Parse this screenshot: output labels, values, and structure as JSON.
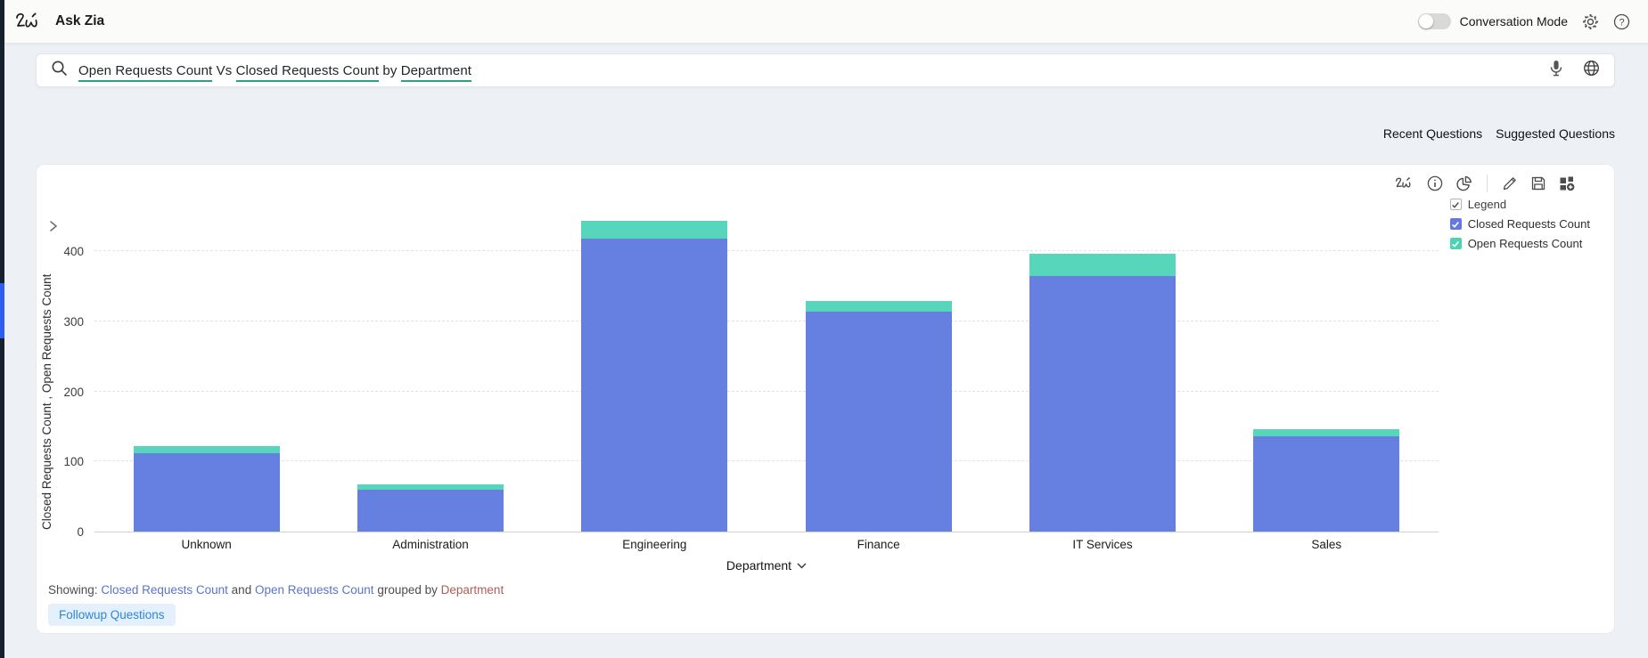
{
  "header": {
    "logo_text": "Zia",
    "title": "Ask Zia",
    "conversation_mode_label": "Conversation Mode",
    "conversation_mode_state": "off"
  },
  "search": {
    "query_parts": {
      "p1": "Open Requests Count",
      "s1": " Vs ",
      "p2": "Closed Requests Count",
      "s2": " by ",
      "p3": "Department"
    }
  },
  "questions_row": {
    "recent_label": "Recent Questions",
    "suggested_label": "Suggested Questions"
  },
  "chart_card": {
    "toolbar_icons": [
      "zia-icon",
      "info-icon",
      "chart-type-pie-icon",
      "edit-pencil-icon",
      "save-icon",
      "add-to-dashboard-icon"
    ],
    "legend": {
      "header_label": "Legend",
      "items": [
        {
          "label": "Closed Requests Count",
          "color": "#6577e0",
          "checked": true
        },
        {
          "label": "Open Requests Count",
          "color": "#4ed2b2",
          "checked": true
        }
      ]
    },
    "xaxis_control_label": "Department",
    "showing": {
      "prefix": "Showing:",
      "measure1": "Closed Requests Count",
      "conjunction": "and",
      "measure2": "Open Requests Count",
      "grouped_by": "grouped by",
      "dimension": "Department"
    },
    "followup_label": "Followup Questions"
  },
  "chart_data": {
    "type": "bar",
    "stacked": true,
    "title": "Open Requests Count Vs Closed Requests Count by Department",
    "categories": [
      "Unknown",
      "Administration",
      "Engineering",
      "Finance",
      "IT Services",
      "Sales"
    ],
    "series": [
      {
        "name": "Closed Requests Count",
        "color": "#6680e2",
        "values": [
          112,
          60,
          418,
          314,
          364,
          136
        ]
      },
      {
        "name": "Open Requests Count",
        "color": "#57d6bb",
        "values": [
          10,
          7,
          26,
          15,
          32,
          10
        ]
      }
    ],
    "xlabel": "Department",
    "ylabel": "Closed Requests Count , Open Requests Count",
    "yticks": [
      0,
      100,
      200,
      300,
      400
    ],
    "ylim": [
      0,
      466
    ],
    "grid": "horizontal-dashed",
    "legend_position": "top-right"
  },
  "colors": {
    "closed_bar": "#6680e2",
    "open_bar": "#57d6bb",
    "query_underline": "#2ba287",
    "measure_link": "#5b74c9",
    "dimension_link": "#aa5f59",
    "followup_text": "#2e86dd",
    "followup_bg": "#e4f0fb",
    "rail_dark": "#17202f",
    "rail_active": "#2f5cf1"
  }
}
